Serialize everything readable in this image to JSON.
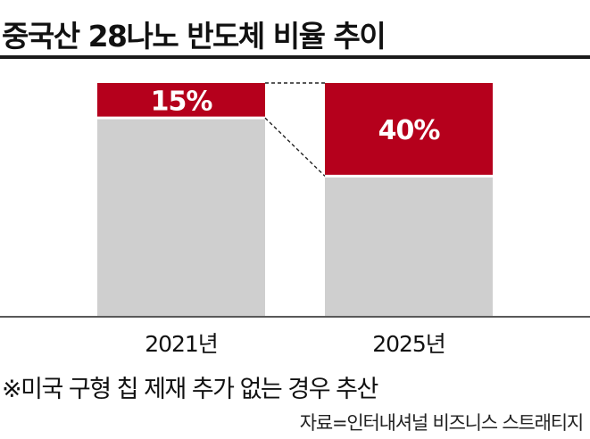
{
  "title": "중국산 28나노 반도체 비율 추이",
  "note": "※미국 구형 칩 제재 추가 없는 경우 추산",
  "source": "자료=인터내셔널 비즈니스 스트래티지",
  "chart_data": {
    "type": "bar",
    "stacked": true,
    "title": "중국산 28나노 반도체 비율 추이",
    "categories": [
      "2021년",
      "2025년"
    ],
    "series": [
      {
        "values": [
          15,
          40
        ],
        "data_labels": [
          "15%",
          "40%"
        ],
        "color": "#b5001c"
      },
      {
        "values": [
          85,
          60
        ],
        "color": "#cfcfcf"
      }
    ],
    "ylim": [
      0,
      100
    ],
    "grid": false,
    "legend": "none",
    "connector_lines": true
  }
}
